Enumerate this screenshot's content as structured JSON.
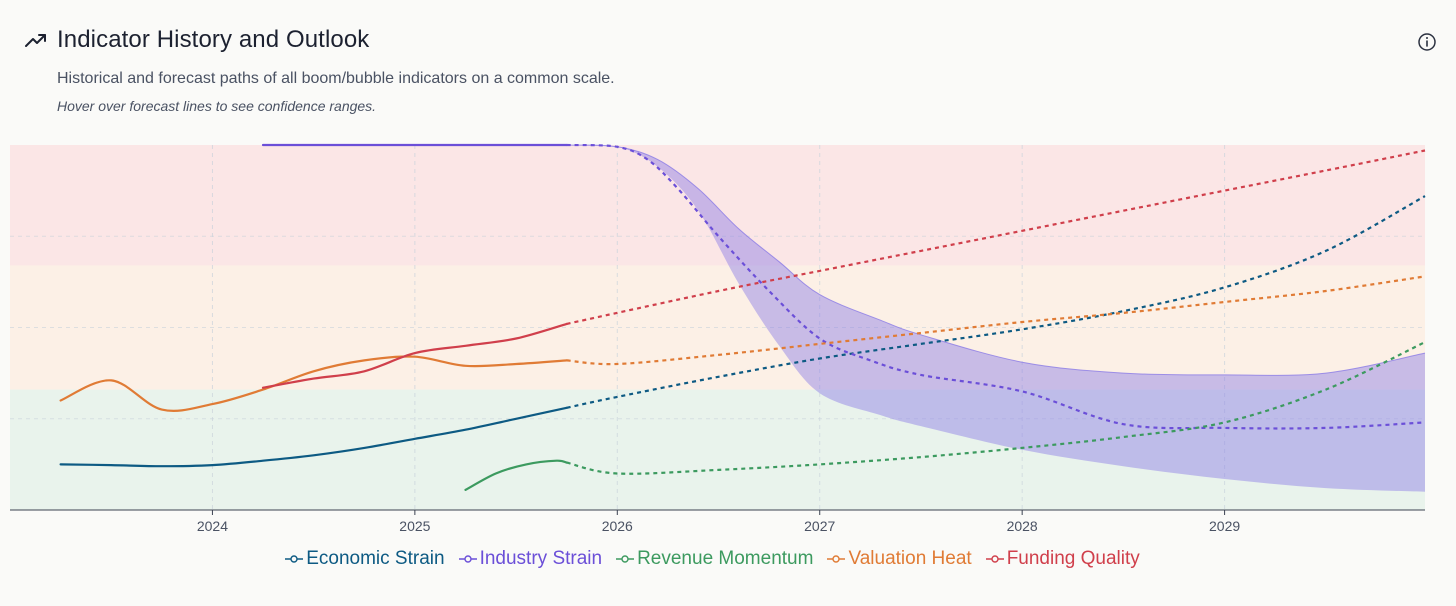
{
  "header": {
    "title": "Indicator History and Outlook",
    "subtitle": "Historical and forecast paths of all boom/bubble indicators on a common scale.",
    "note": "Hover over forecast lines to see confidence ranges."
  },
  "icons": {
    "title_icon": "trending-up-icon",
    "info_icon": "info-icon"
  },
  "chart_data": {
    "type": "line",
    "x_range": [
      2023.0,
      2029.99
    ],
    "y_range": [
      0,
      100
    ],
    "x_ticks": [
      2024,
      2025,
      2026,
      2027,
      2028,
      2029
    ],
    "x_tick_labels": [
      "2024",
      "2025",
      "2026",
      "2027",
      "2028",
      "2029"
    ],
    "forecast_start": 2025.75,
    "bands": [
      {
        "from": 0,
        "to": 33,
        "color": "#e9f3ec"
      },
      {
        "from": 33,
        "to": 67,
        "color": "#fcf0e6"
      },
      {
        "from": 67,
        "to": 100,
        "color": "#fbe6e6"
      }
    ],
    "series": [
      {
        "name": "Economic Strain",
        "color": "#0d5a83",
        "history": {
          "x": [
            2023.25,
            2023.5,
            2023.75,
            2024.0,
            2024.25,
            2024.5,
            2024.75,
            2025.0,
            2025.25,
            2025.5,
            2025.75
          ],
          "y": [
            12.5,
            12.3,
            12.0,
            12.3,
            13.5,
            15.0,
            17.0,
            19.5,
            22.0,
            25.0,
            28.0
          ]
        },
        "forecast": {
          "x": [
            2025.75,
            2026.0,
            2026.5,
            2027.0,
            2027.5,
            2028.0,
            2028.5,
            2029.0,
            2029.5,
            2029.99
          ],
          "y": [
            28.0,
            31.0,
            36.5,
            41.5,
            45.5,
            49.5,
            54.5,
            61.0,
            71.0,
            86.0
          ]
        }
      },
      {
        "name": "Industry Strain",
        "color": "#6b4fd8",
        "band_color": "#8a7ae6",
        "history": {
          "x": [
            2024.25,
            2024.75,
            2025.25,
            2025.75
          ],
          "y": [
            100,
            100,
            100,
            100
          ]
        },
        "forecast": {
          "x": [
            2025.75,
            2026.0,
            2026.15,
            2026.3,
            2026.5,
            2026.75,
            2027.0,
            2027.25,
            2027.5,
            2028.0,
            2028.5,
            2029.0,
            2029.5,
            2029.99
          ],
          "y": [
            100,
            99.5,
            96,
            88,
            75,
            60,
            47,
            41,
            37,
            32.5,
            23.5,
            22.5,
            22.5,
            24
          ]
        },
        "upper": {
          "x": [
            2025.75,
            2026.0,
            2026.2,
            2026.4,
            2026.6,
            2026.8,
            2027.0,
            2027.3,
            2027.5,
            2028.0,
            2028.5,
            2029.0,
            2029.5,
            2029.99
          ],
          "y": [
            100,
            99.5,
            96,
            88,
            77,
            68,
            59,
            52,
            48,
            40.5,
            37.5,
            37,
            37.5,
            43
          ]
        },
        "lower": {
          "x": [
            2025.75,
            2026.0,
            2026.2,
            2026.4,
            2026.6,
            2026.8,
            2027.0,
            2027.3,
            2027.5,
            2028.0,
            2028.5,
            2029.0,
            2029.5,
            2029.99
          ],
          "y": [
            100,
            99.5,
            94,
            82,
            62,
            45,
            32,
            26,
            23,
            16.5,
            12,
            8.5,
            6,
            5
          ]
        }
      },
      {
        "name": "Revenue Momentum",
        "color": "#3c9a5f",
        "history": {
          "x": [
            2025.25,
            2025.4,
            2025.55,
            2025.7,
            2025.75
          ],
          "y": [
            5.5,
            10.0,
            12.5,
            13.5,
            13.0
          ]
        },
        "forecast": {
          "x": [
            2025.75,
            2026.0,
            2026.5,
            2027.0,
            2027.5,
            2028.0,
            2028.5,
            2029.0,
            2029.5,
            2029.99
          ],
          "y": [
            13.0,
            10.0,
            11.0,
            12.5,
            14.5,
            17.0,
            20.0,
            24.0,
            33.0,
            46.0
          ]
        }
      },
      {
        "name": "Valuation Heat",
        "color": "#e07b35",
        "history": {
          "x": [
            2023.25,
            2023.5,
            2023.75,
            2024.0,
            2024.25,
            2024.5,
            2024.75,
            2025.0,
            2025.25,
            2025.5,
            2025.75
          ],
          "y": [
            30.0,
            35.5,
            27.5,
            29.0,
            33.0,
            38.0,
            41.0,
            42.0,
            39.5,
            40.0,
            41.0
          ]
        },
        "forecast": {
          "x": [
            2025.75,
            2026.0,
            2026.5,
            2027.0,
            2027.5,
            2028.0,
            2028.5,
            2029.0,
            2029.5,
            2029.99
          ],
          "y": [
            41.0,
            40.0,
            42.5,
            45.5,
            48.5,
            51.5,
            54.0,
            57.0,
            60.0,
            64.0
          ]
        }
      },
      {
        "name": "Funding Quality",
        "color": "#d03f4b",
        "history": {
          "x": [
            2024.25,
            2024.5,
            2024.75,
            2025.0,
            2025.25,
            2025.5,
            2025.75
          ],
          "y": [
            33.5,
            36.0,
            38.0,
            43.0,
            45.0,
            47.0,
            51.0
          ]
        },
        "forecast": {
          "x": [
            2025.75,
            2026.5,
            2027.0,
            2027.5,
            2028.0,
            2028.5,
            2029.0,
            2029.5,
            2029.99
          ],
          "y": [
            51.0,
            60.0,
            65.5,
            71.0,
            76.5,
            82.0,
            87.5,
            93.0,
            98.5
          ]
        }
      }
    ]
  }
}
